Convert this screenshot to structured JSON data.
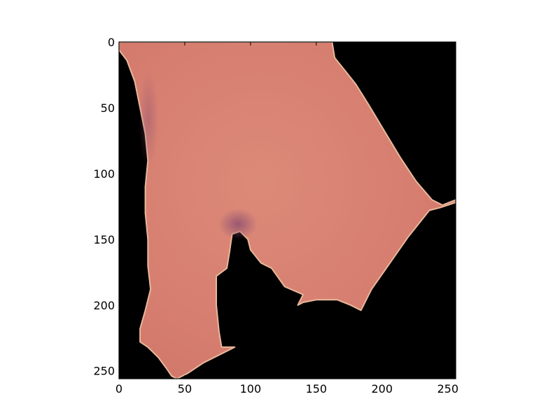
{
  "chart_data": {
    "type": "image",
    "title": "",
    "xlabel": "",
    "ylabel": "",
    "xlim": [
      0,
      256
    ],
    "ylim": [
      256,
      0
    ],
    "x_ticks": [
      0,
      50,
      100,
      150,
      200,
      250
    ],
    "y_ticks": [
      0,
      50,
      100,
      150,
      200,
      250
    ],
    "x_tick_labels": [
      "0",
      "50",
      "100",
      "150",
      "200",
      "250"
    ],
    "y_tick_labels": [
      "0",
      "50",
      "100",
      "150",
      "200",
      "250"
    ],
    "grid": false,
    "legend": "none",
    "colors": {
      "background": "#000000",
      "region_fill": "#d88072",
      "region_edge": "#e8b89a",
      "region_shadow": "#9c5a70"
    },
    "masked_region": {
      "description_units": "pixel coordinates of the 256x256 image",
      "outline": [
        [
          0,
          0
        ],
        [
          162,
          0
        ],
        [
          164,
          12
        ],
        [
          172,
          22
        ],
        [
          180,
          32
        ],
        [
          190,
          48
        ],
        [
          202,
          68
        ],
        [
          214,
          88
        ],
        [
          226,
          106
        ],
        [
          238,
          120
        ],
        [
          246,
          124
        ],
        [
          256,
          120
        ],
        [
          256,
          122
        ],
        [
          244,
          126
        ],
        [
          236,
          128
        ],
        [
          220,
          148
        ],
        [
          206,
          168
        ],
        [
          192,
          188
        ],
        [
          184,
          204
        ],
        [
          176,
          200
        ],
        [
          166,
          196
        ],
        [
          150,
          196
        ],
        [
          140,
          198
        ],
        [
          136,
          200
        ],
        [
          140,
          192
        ],
        [
          126,
          186
        ],
        [
          116,
          172
        ],
        [
          108,
          168
        ],
        [
          100,
          158
        ],
        [
          98,
          150
        ],
        [
          92,
          144
        ],
        [
          86,
          146
        ],
        [
          84,
          160
        ],
        [
          82,
          172
        ],
        [
          74,
          178
        ],
        [
          74,
          200
        ],
        [
          76,
          220
        ],
        [
          78,
          232
        ],
        [
          88,
          232
        ],
        [
          84,
          234
        ],
        [
          76,
          238
        ],
        [
          64,
          244
        ],
        [
          52,
          252
        ],
        [
          44,
          256
        ],
        [
          40,
          254
        ],
        [
          36,
          248
        ],
        [
          30,
          240
        ],
        [
          22,
          232
        ],
        [
          16,
          228
        ],
        [
          16,
          218
        ],
        [
          20,
          204
        ],
        [
          24,
          188
        ],
        [
          22,
          170
        ],
        [
          22,
          150
        ],
        [
          20,
          130
        ],
        [
          20,
          110
        ],
        [
          22,
          90
        ],
        [
          20,
          70
        ],
        [
          16,
          50
        ],
        [
          12,
          30
        ],
        [
          6,
          14
        ],
        [
          0,
          6
        ]
      ]
    }
  }
}
